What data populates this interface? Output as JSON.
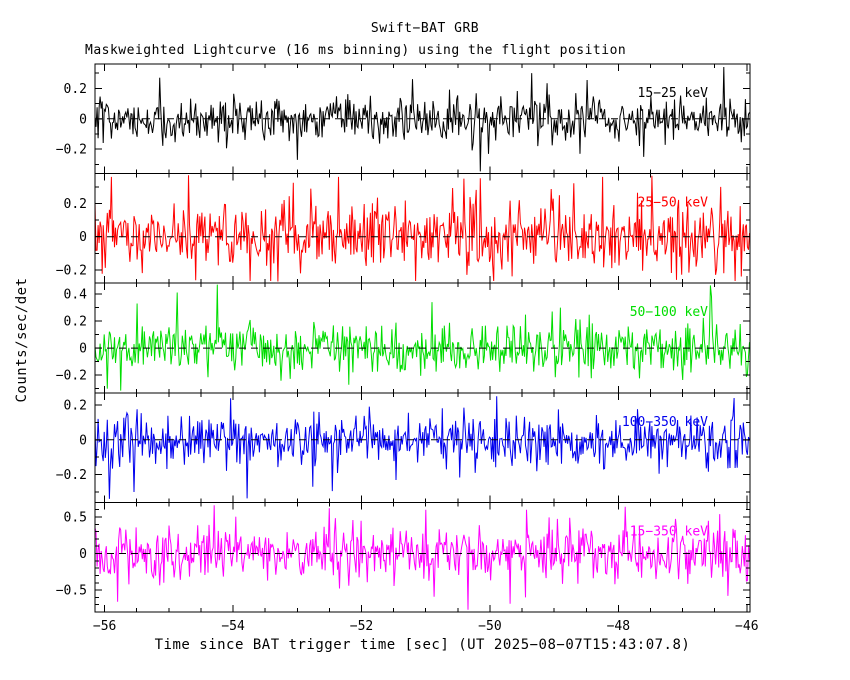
{
  "title": "Swift−BAT GRB",
  "subtitle": "Maskweighted Lightcurve (16 ms binning) using the flight position",
  "axes": {
    "ylabel": "Counts/sec/det",
    "xlabel": "Time since BAT trigger time [sec] (UT 2025−08−07T15:43:07.8)"
  },
  "chart_data": {
    "type": "line",
    "title": "Swift−BAT GRB",
    "subtitle": "Maskweighted Lightcurve (16 ms binning) using the flight position",
    "xlabel": "Time since BAT trigger time [sec] (UT 2025−08−07T15:43:07.8)",
    "ylabel": "Counts/sec/det",
    "x_range": [
      -56.15,
      -45.95
    ],
    "x_ticks": [
      -56,
      -54,
      -52,
      -50,
      -48,
      -46
    ],
    "x_minor_step": 0.5,
    "bin_width_sec": 0.016,
    "grid": false,
    "zero_line": {
      "style": "dashed",
      "color": "#000000"
    },
    "panels": [
      {
        "label": "15−25 keV",
        "color": "#000000",
        "ylim": [
          -0.36,
          0.36
        ],
        "yticks": [
          -0.2,
          0,
          0.2
        ],
        "y_minor_step": 0.1,
        "noise_sigma": 0.075,
        "spike_prob": 0.012,
        "seed": 101,
        "spikes": [
          {
            "x": -55.15,
            "y": 0.27
          },
          {
            "x": -53.0,
            "y": -0.27
          },
          {
            "x": -51.2,
            "y": 0.26
          },
          {
            "x": -49.35,
            "y": 0.3
          },
          {
            "x": -47.6,
            "y": -0.25
          },
          {
            "x": -46.35,
            "y": 0.34
          }
        ]
      },
      {
        "label": "25−50 keV",
        "color": "#ff0000",
        "ylim": [
          -0.28,
          0.38
        ],
        "yticks": [
          -0.2,
          0,
          0.2
        ],
        "y_minor_step": 0.1,
        "noise_sigma": 0.105,
        "spike_prob": 0.014,
        "seed": 202,
        "spikes": [
          {
            "x": -55.9,
            "y": 0.36
          },
          {
            "x": -54.7,
            "y": 0.37
          },
          {
            "x": -53.3,
            "y": -0.27
          },
          {
            "x": -52.35,
            "y": 0.36
          },
          {
            "x": -50.4,
            "y": 0.35
          },
          {
            "x": -48.25,
            "y": 0.36
          },
          {
            "x": -47.1,
            "y": -0.26
          },
          {
            "x": -46.4,
            "y": 0.3
          }
        ]
      },
      {
        "label": "50−100 keV",
        "color": "#00dd00",
        "ylim": [
          -0.33,
          0.48
        ],
        "yticks": [
          -0.2,
          0,
          0.2,
          0.4
        ],
        "y_minor_step": 0.1,
        "noise_sigma": 0.09,
        "spike_prob": 0.012,
        "seed": 303,
        "spikes": [
          {
            "x": -55.95,
            "y": -0.3
          },
          {
            "x": -55.5,
            "y": 0.33
          },
          {
            "x": -54.25,
            "y": 0.47
          },
          {
            "x": -52.2,
            "y": -0.27
          },
          {
            "x": -50.9,
            "y": 0.34
          },
          {
            "x": -48.9,
            "y": 0.3
          },
          {
            "x": -46.55,
            "y": 0.38
          }
        ]
      },
      {
        "label": "100−350 keV",
        "color": "#0000ee",
        "ylim": [
          -0.36,
          0.27
        ],
        "yticks": [
          -0.2,
          0,
          0.2
        ],
        "y_minor_step": 0.1,
        "noise_sigma": 0.078,
        "spike_prob": 0.011,
        "seed": 404,
        "spikes": [
          {
            "x": -55.92,
            "y": -0.34
          },
          {
            "x": -55.55,
            "y": -0.3
          },
          {
            "x": -52.75,
            "y": -0.27
          },
          {
            "x": -49.9,
            "y": 0.25
          },
          {
            "x": -46.2,
            "y": 0.24
          }
        ]
      },
      {
        "label": "15−350 keV",
        "color": "#ff00ff",
        "ylim": [
          -0.8,
          0.7
        ],
        "yticks": [
          -0.5,
          0,
          0.5
        ],
        "y_minor_step": 0.1,
        "noise_sigma": 0.2,
        "spike_prob": 0.013,
        "seed": 505,
        "spikes": [
          {
            "x": -55.8,
            "y": -0.66
          },
          {
            "x": -54.3,
            "y": 0.66
          },
          {
            "x": -52.5,
            "y": 0.62
          },
          {
            "x": -51.0,
            "y": 0.6
          },
          {
            "x": -49.45,
            "y": -0.6
          },
          {
            "x": -47.9,
            "y": 0.64
          },
          {
            "x": -46.3,
            "y": -0.58
          }
        ]
      }
    ]
  }
}
